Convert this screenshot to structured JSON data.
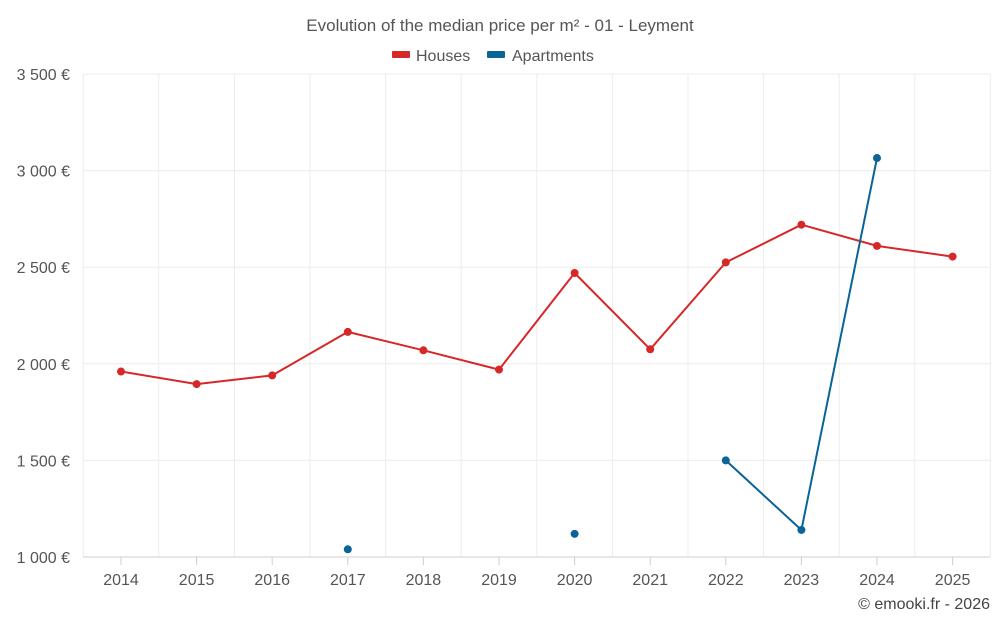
{
  "chart_data": {
    "type": "line",
    "title": "Evolution of the median price per m² - 01 - Leyment",
    "categories": [
      "2014",
      "2015",
      "2016",
      "2017",
      "2018",
      "2019",
      "2020",
      "2021",
      "2022",
      "2023",
      "2024",
      "2025"
    ],
    "ylim": [
      1000,
      3500
    ],
    "yticks": [
      1000,
      1500,
      2000,
      2500,
      3000,
      3500
    ],
    "ytick_labels": [
      "1 000 €",
      "1 500 €",
      "2 000 €",
      "2 500 €",
      "3 000 €",
      "3 500 €"
    ],
    "series": [
      {
        "name": "Houses",
        "color": "#d62828",
        "values": [
          1960,
          1895,
          1940,
          2165,
          2070,
          1970,
          2470,
          2075,
          2525,
          2720,
          2610,
          2555
        ]
      },
      {
        "name": "Apartments",
        "color": "#0a6496",
        "values": [
          null,
          null,
          null,
          1040,
          null,
          null,
          1120,
          null,
          1500,
          1140,
          3065,
          null
        ]
      }
    ],
    "grid": true,
    "legend": "top-center"
  },
  "credit": "© emooki.fr - 2026"
}
